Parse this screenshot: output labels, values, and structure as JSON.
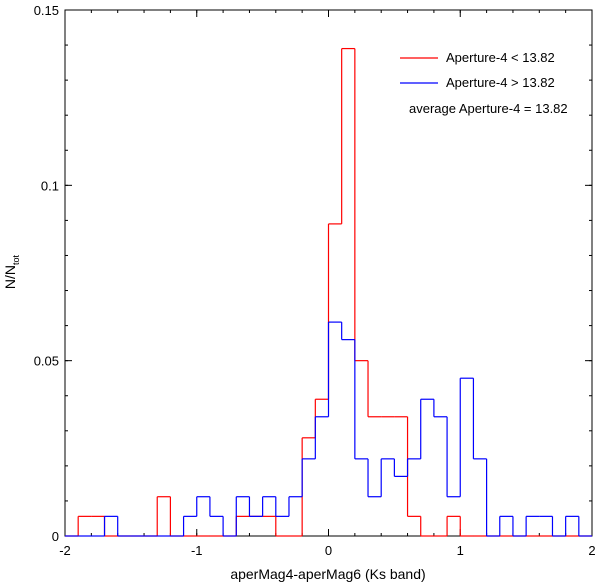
{
  "chart_data": {
    "type": "histogram-step",
    "title": "",
    "xlabel": "aperMag4-aperMag6 (Ks band)",
    "ylabel_main": "N/N",
    "ylabel_sub": "tot",
    "xlim": [
      -2,
      2
    ],
    "ylim": [
      0,
      0.15
    ],
    "x_ticks": [
      -2,
      -1,
      0,
      1,
      2
    ],
    "x_tick_labels": [
      "-2",
      "-1",
      "0",
      "1",
      "2"
    ],
    "y_ticks": [
      0,
      0.05,
      0.1,
      0.15
    ],
    "y_tick_labels": [
      "0",
      "0.05",
      "0.1",
      "0.15"
    ],
    "bin_edges": [
      -2.0,
      -1.9,
      -1.8,
      -1.7,
      -1.6,
      -1.5,
      -1.4,
      -1.3,
      -1.2,
      -1.1,
      -1.0,
      -0.9,
      -0.8,
      -0.7,
      -0.6,
      -0.5,
      -0.4,
      -0.3,
      -0.2,
      -0.1,
      0.0,
      0.1,
      0.2,
      0.3,
      0.4,
      0.5,
      0.6,
      0.7,
      0.8,
      0.9,
      1.0,
      1.1,
      1.2,
      1.3,
      1.4,
      1.5,
      1.6,
      1.7,
      1.8,
      1.9,
      2.0
    ],
    "series": [
      {
        "name": "Aperture-4 < 13.82",
        "color": "#ff0000",
        "values": [
          0,
          0.0056,
          0.0056,
          0,
          0,
          0,
          0,
          0.0112,
          0,
          0,
          0,
          0,
          0,
          0.0056,
          0.0056,
          0.0056,
          0,
          0,
          0.028,
          0.039,
          0.089,
          0.139,
          0.05,
          0.034,
          0.034,
          0.034,
          0.0056,
          0,
          0,
          0.0056,
          0,
          0,
          0,
          0,
          0,
          0,
          0,
          0,
          0,
          0
        ]
      },
      {
        "name": "Aperture-4 > 13.82",
        "color": "#0000ff",
        "values": [
          0,
          0,
          0,
          0.0056,
          0,
          0,
          0,
          0,
          0,
          0.0056,
          0.0112,
          0.0056,
          0,
          0.0112,
          0.0056,
          0.0112,
          0.0056,
          0.0112,
          0.022,
          0.034,
          0.061,
          0.056,
          0.022,
          0.0112,
          0.022,
          0.017,
          0.022,
          0.039,
          0.034,
          0.0112,
          0.045,
          0.022,
          0,
          0.0056,
          0,
          0.0056,
          0.0056,
          0,
          0.0056,
          0
        ]
      }
    ],
    "annotation": "average Aperture-4 = 13.82",
    "legend_position": "top-right"
  }
}
